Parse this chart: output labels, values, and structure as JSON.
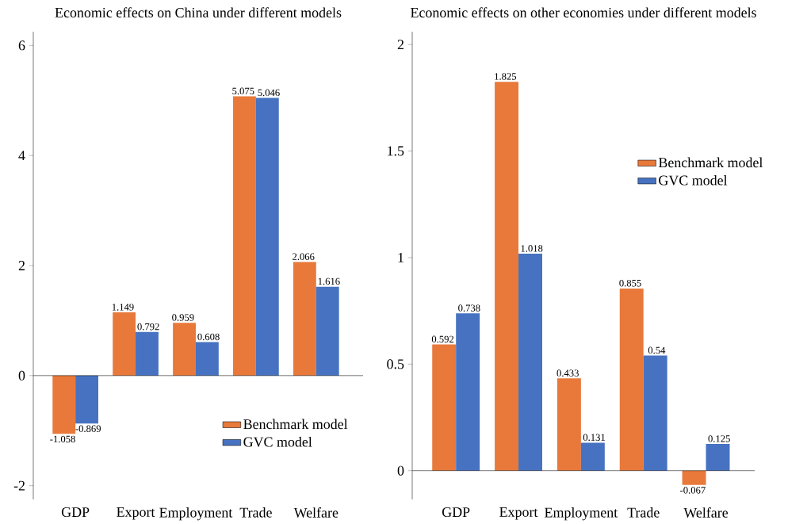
{
  "chart_data": [
    {
      "type": "bar",
      "title": "Economic effects on China under different models",
      "categories": [
        "GDP",
        "Export",
        "Employment",
        "Trade",
        "Welfare"
      ],
      "series": [
        {
          "name": "Benchmark model",
          "color": "#e8793a",
          "values": [
            -1.058,
            1.149,
            0.959,
            5.075,
            2.066
          ]
        },
        {
          "name": "GVC model",
          "color": "#4672c1",
          "values": [
            -0.869,
            0.792,
            0.608,
            5.046,
            1.616
          ]
        }
      ],
      "ylim": [
        -2.25,
        6.25
      ],
      "yticks": [
        -2,
        0,
        2,
        4,
        6
      ],
      "data_labels": true,
      "legend": "bottom right"
    },
    {
      "type": "bar",
      "title": "Economic effects on other economies under different models",
      "categories": [
        "GDP",
        "Export",
        "Employment",
        "Trade",
        "Welfare"
      ],
      "series": [
        {
          "name": "Benchmark model",
          "color": "#e8793a",
          "values": [
            0.592,
            1.825,
            0.433,
            0.855,
            -0.067
          ]
        },
        {
          "name": "GVC model",
          "color": "#4672c1",
          "values": [
            0.738,
            1.018,
            0.131,
            0.54,
            0.125
          ]
        }
      ],
      "ylim": [
        -0.135,
        2.06
      ],
      "yticks": [
        0,
        0.5,
        1,
        1.5,
        2
      ],
      "data_labels": true,
      "legend": "right"
    }
  ]
}
